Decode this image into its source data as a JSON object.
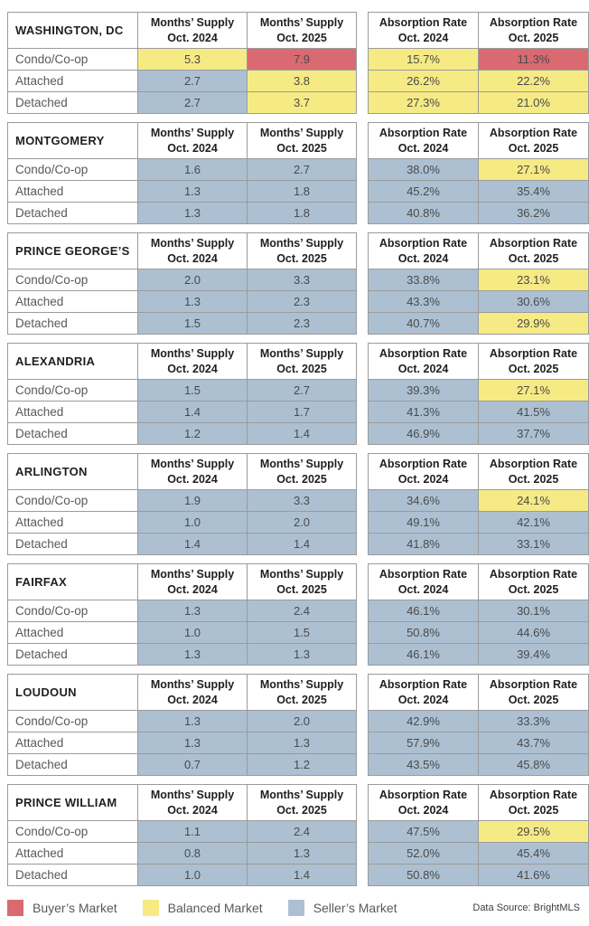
{
  "chart_data": {
    "type": "table",
    "market_colors": {
      "buyer": "#D96A72",
      "balanced": "#F6EA85",
      "seller": "#ACC0D2"
    },
    "columns": [
      {
        "line1": "Months’ Supply",
        "line2": "Oct. 2024"
      },
      {
        "line1": "Months’ Supply",
        "line2": "Oct. 2025"
      },
      {
        "line1": "Absorption Rate",
        "line2": "Oct. 2024"
      },
      {
        "line1": "Absorption Rate",
        "line2": "Oct. 2025"
      }
    ],
    "row_labels": [
      "Condo/Co-op",
      "Attached",
      "Detached"
    ],
    "sections": [
      {
        "name": "WASHINGTON, DC",
        "rows": [
          {
            "label": "Condo/Co-op",
            "cells": [
              {
                "value": "5.3",
                "market": "balanced"
              },
              {
                "value": "7.9",
                "market": "buyer"
              },
              {
                "value": "15.7%",
                "market": "balanced"
              },
              {
                "value": "11.3%",
                "market": "buyer"
              }
            ]
          },
          {
            "label": "Attached",
            "cells": [
              {
                "value": "2.7",
                "market": "seller"
              },
              {
                "value": "3.8",
                "market": "balanced"
              },
              {
                "value": "26.2%",
                "market": "balanced"
              },
              {
                "value": "22.2%",
                "market": "balanced"
              }
            ]
          },
          {
            "label": "Detached",
            "cells": [
              {
                "value": "2.7",
                "market": "seller"
              },
              {
                "value": "3.7",
                "market": "balanced"
              },
              {
                "value": "27.3%",
                "market": "balanced"
              },
              {
                "value": "21.0%",
                "market": "balanced"
              }
            ]
          }
        ]
      },
      {
        "name": "MONTGOMERY",
        "rows": [
          {
            "label": "Condo/Co-op",
            "cells": [
              {
                "value": "1.6",
                "market": "seller"
              },
              {
                "value": "2.7",
                "market": "seller"
              },
              {
                "value": "38.0%",
                "market": "seller"
              },
              {
                "value": "27.1%",
                "market": "balanced"
              }
            ]
          },
          {
            "label": "Attached",
            "cells": [
              {
                "value": "1.3",
                "market": "seller"
              },
              {
                "value": "1.8",
                "market": "seller"
              },
              {
                "value": "45.2%",
                "market": "seller"
              },
              {
                "value": "35.4%",
                "market": "seller"
              }
            ]
          },
          {
            "label": "Detached",
            "cells": [
              {
                "value": "1.3",
                "market": "seller"
              },
              {
                "value": "1.8",
                "market": "seller"
              },
              {
                "value": "40.8%",
                "market": "seller"
              },
              {
                "value": "36.2%",
                "market": "seller"
              }
            ]
          }
        ]
      },
      {
        "name": "PRINCE GEORGE’S",
        "rows": [
          {
            "label": "Condo/Co-op",
            "cells": [
              {
                "value": "2.0",
                "market": "seller"
              },
              {
                "value": "3.3",
                "market": "seller"
              },
              {
                "value": "33.8%",
                "market": "seller"
              },
              {
                "value": "23.1%",
                "market": "balanced"
              }
            ]
          },
          {
            "label": "Attached",
            "cells": [
              {
                "value": "1.3",
                "market": "seller"
              },
              {
                "value": "2.3",
                "market": "seller"
              },
              {
                "value": "43.3%",
                "market": "seller"
              },
              {
                "value": "30.6%",
                "market": "seller"
              }
            ]
          },
          {
            "label": "Detached",
            "cells": [
              {
                "value": "1.5",
                "market": "seller"
              },
              {
                "value": "2.3",
                "market": "seller"
              },
              {
                "value": "40.7%",
                "market": "seller"
              },
              {
                "value": "29.9%",
                "market": "balanced"
              }
            ]
          }
        ]
      },
      {
        "name": "ALEXANDRIA",
        "rows": [
          {
            "label": "Condo/Co-op",
            "cells": [
              {
                "value": "1.5",
                "market": "seller"
              },
              {
                "value": "2.7",
                "market": "seller"
              },
              {
                "value": "39.3%",
                "market": "seller"
              },
              {
                "value": "27.1%",
                "market": "balanced"
              }
            ]
          },
          {
            "label": "Attached",
            "cells": [
              {
                "value": "1.4",
                "market": "seller"
              },
              {
                "value": "1.7",
                "market": "seller"
              },
              {
                "value": "41.3%",
                "market": "seller"
              },
              {
                "value": "41.5%",
                "market": "seller"
              }
            ]
          },
          {
            "label": "Detached",
            "cells": [
              {
                "value": "1.2",
                "market": "seller"
              },
              {
                "value": "1.4",
                "market": "seller"
              },
              {
                "value": "46.9%",
                "market": "seller"
              },
              {
                "value": "37.7%",
                "market": "seller"
              }
            ]
          }
        ]
      },
      {
        "name": "ARLINGTON",
        "rows": [
          {
            "label": "Condo/Co-op",
            "cells": [
              {
                "value": "1.9",
                "market": "seller"
              },
              {
                "value": "3.3",
                "market": "seller"
              },
              {
                "value": "34.6%",
                "market": "seller"
              },
              {
                "value": "24.1%",
                "market": "balanced"
              }
            ]
          },
          {
            "label": "Attached",
            "cells": [
              {
                "value": "1.0",
                "market": "seller"
              },
              {
                "value": "2.0",
                "market": "seller"
              },
              {
                "value": "49.1%",
                "market": "seller"
              },
              {
                "value": "42.1%",
                "market": "seller"
              }
            ]
          },
          {
            "label": "Detached",
            "cells": [
              {
                "value": "1.4",
                "market": "seller"
              },
              {
                "value": "1.4",
                "market": "seller"
              },
              {
                "value": "41.8%",
                "market": "seller"
              },
              {
                "value": "33.1%",
                "market": "seller"
              }
            ]
          }
        ]
      },
      {
        "name": "FAIRFAX",
        "rows": [
          {
            "label": "Condo/Co-op",
            "cells": [
              {
                "value": "1.3",
                "market": "seller"
              },
              {
                "value": "2.4",
                "market": "seller"
              },
              {
                "value": "46.1%",
                "market": "seller"
              },
              {
                "value": "30.1%",
                "market": "seller"
              }
            ]
          },
          {
            "label": "Attached",
            "cells": [
              {
                "value": "1.0",
                "market": "seller"
              },
              {
                "value": "1.5",
                "market": "seller"
              },
              {
                "value": "50.8%",
                "market": "seller"
              },
              {
                "value": "44.6%",
                "market": "seller"
              }
            ]
          },
          {
            "label": "Detached",
            "cells": [
              {
                "value": "1.3",
                "market": "seller"
              },
              {
                "value": "1.3",
                "market": "seller"
              },
              {
                "value": "46.1%",
                "market": "seller"
              },
              {
                "value": "39.4%",
                "market": "seller"
              }
            ]
          }
        ]
      },
      {
        "name": "LOUDOUN",
        "rows": [
          {
            "label": "Condo/Co-op",
            "cells": [
              {
                "value": "1.3",
                "market": "seller"
              },
              {
                "value": "2.0",
                "market": "seller"
              },
              {
                "value": "42.9%",
                "market": "seller"
              },
              {
                "value": "33.3%",
                "market": "seller"
              }
            ]
          },
          {
            "label": "Attached",
            "cells": [
              {
                "value": "1.3",
                "market": "seller"
              },
              {
                "value": "1.3",
                "market": "seller"
              },
              {
                "value": "57.9%",
                "market": "seller"
              },
              {
                "value": "43.7%",
                "market": "seller"
              }
            ]
          },
          {
            "label": "Detached",
            "cells": [
              {
                "value": "0.7",
                "market": "seller"
              },
              {
                "value": "1.2",
                "market": "seller"
              },
              {
                "value": "43.5%",
                "market": "seller"
              },
              {
                "value": "45.8%",
                "market": "seller"
              }
            ]
          }
        ]
      },
      {
        "name": "PRINCE WILLIAM",
        "rows": [
          {
            "label": "Condo/Co-op",
            "cells": [
              {
                "value": "1.1",
                "market": "seller"
              },
              {
                "value": "2.4",
                "market": "seller"
              },
              {
                "value": "47.5%",
                "market": "seller"
              },
              {
                "value": "29.5%",
                "market": "balanced"
              }
            ]
          },
          {
            "label": "Attached",
            "cells": [
              {
                "value": "0.8",
                "market": "seller"
              },
              {
                "value": "1.3",
                "market": "seller"
              },
              {
                "value": "52.0%",
                "market": "seller"
              },
              {
                "value": "45.4%",
                "market": "seller"
              }
            ]
          },
          {
            "label": "Detached",
            "cells": [
              {
                "value": "1.0",
                "market": "seller"
              },
              {
                "value": "1.4",
                "market": "seller"
              },
              {
                "value": "50.8%",
                "market": "seller"
              },
              {
                "value": "41.6%",
                "market": "seller"
              }
            ]
          }
        ]
      }
    ],
    "legend": [
      {
        "label": "Buyer’s Market",
        "market": "buyer"
      },
      {
        "label": "Balanced Market",
        "market": "balanced"
      },
      {
        "label": "Seller’s Market",
        "market": "seller"
      }
    ],
    "data_source": "Data Source: BrightMLS"
  }
}
